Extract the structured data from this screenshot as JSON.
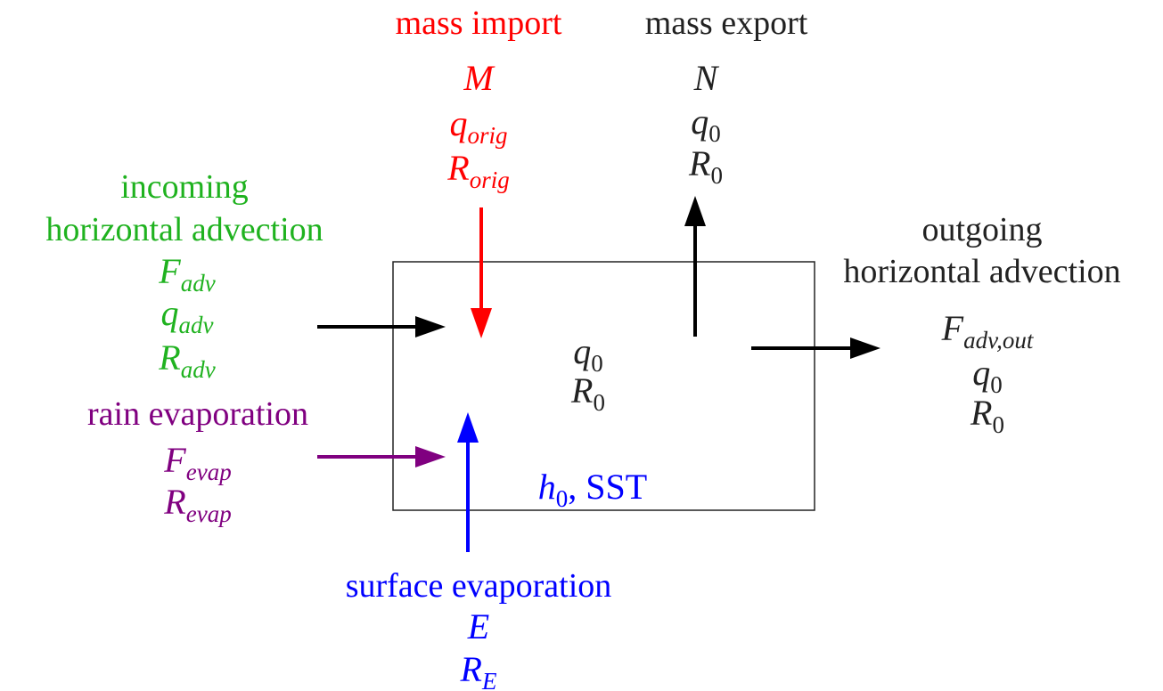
{
  "mass_import": {
    "label_lines": [
      "mass import"
    ],
    "symbols": [
      {
        "base": "M"
      },
      {
        "base": "q",
        "sub": "orig"
      },
      {
        "base": "R",
        "sub": "orig"
      }
    ]
  },
  "mass_export": {
    "label_lines": [
      "mass export"
    ],
    "symbols": [
      {
        "base": "N"
      },
      {
        "base": "q",
        "sub": "0"
      },
      {
        "base": "R",
        "sub": "0"
      }
    ]
  },
  "incoming_advection": {
    "label_lines": [
      "incoming",
      "horizontal advection"
    ],
    "symbols": [
      {
        "base": "F",
        "sub": "adv"
      },
      {
        "base": "q",
        "sub": "adv"
      },
      {
        "base": "R",
        "sub": "adv"
      }
    ]
  },
  "rain_evaporation": {
    "label_lines": [
      "rain evaporation"
    ],
    "symbols": [
      {
        "base": "F",
        "sub": "evap"
      },
      {
        "base": "R",
        "sub": "evap"
      }
    ]
  },
  "surface_evaporation": {
    "label_lines": [
      "surface evaporation"
    ],
    "symbols": [
      {
        "base": "E"
      },
      {
        "base": "R",
        "sub": "E"
      }
    ]
  },
  "outgoing_advection": {
    "label_lines": [
      "outgoing",
      "horizontal advection"
    ],
    "symbols": [
      {
        "base": "F",
        "sub": "adv,out"
      },
      {
        "base": "q",
        "sub": "0"
      },
      {
        "base": "R",
        "sub": "0"
      }
    ]
  },
  "box": {
    "label_lines": [],
    "symbols": [
      {
        "base": "q",
        "sub": "0"
      },
      {
        "base": "R",
        "sub": "0"
      },
      {
        "base": "h",
        "sub": "0",
        "suffix": ", SST"
      }
    ]
  }
}
